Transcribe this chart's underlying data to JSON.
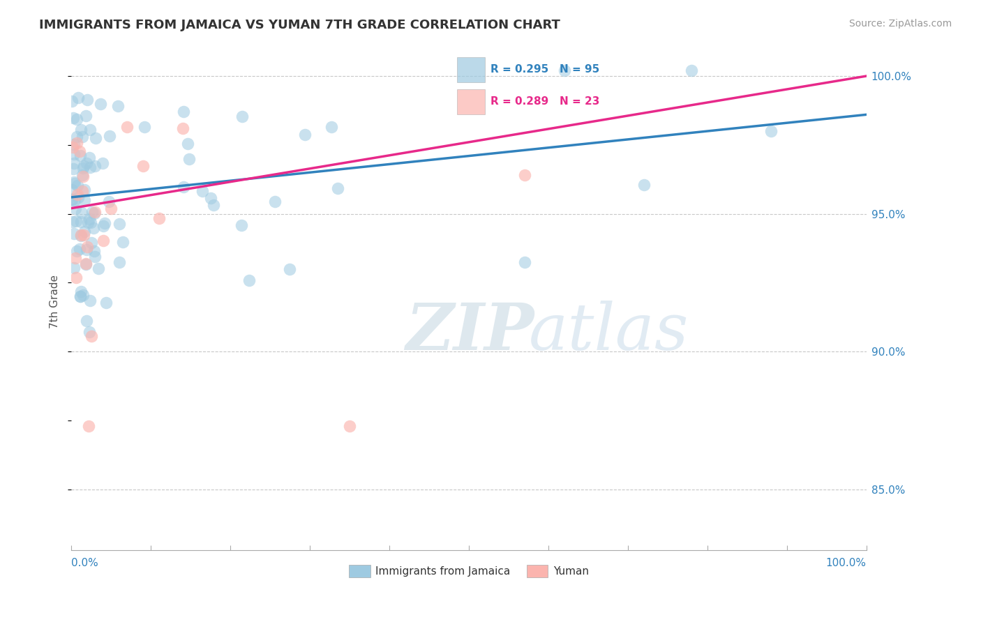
{
  "title": "IMMIGRANTS FROM JAMAICA VS YUMAN 7TH GRADE CORRELATION CHART",
  "source": "Source: ZipAtlas.com",
  "ylabel": "7th Grade",
  "legend_blue_label": "Immigrants from Jamaica",
  "legend_pink_label": "Yuman",
  "blue_R": 0.295,
  "blue_N": 95,
  "pink_R": 0.289,
  "pink_N": 23,
  "blue_color": "#9ecae1",
  "pink_color": "#fbb4ae",
  "blue_line_color": "#3182bd",
  "pink_line_color": "#e7298a",
  "watermark_zip": "ZIP",
  "watermark_atlas": "atlas",
  "right_ytick_labels": [
    "85.0%",
    "90.0%",
    "95.0%",
    "100.0%"
  ],
  "right_ytick_values": [
    0.85,
    0.9,
    0.95,
    1.0
  ],
  "xlim": [
    0.0,
    1.0
  ],
  "ylim": [
    0.828,
    1.008
  ],
  "blue_line_x0": 0.0,
  "blue_line_y0": 0.956,
  "blue_line_x1": 1.0,
  "blue_line_y1": 0.986,
  "pink_line_x0": 0.0,
  "pink_line_y0": 0.952,
  "pink_line_x1": 1.0,
  "pink_line_y1": 1.0
}
